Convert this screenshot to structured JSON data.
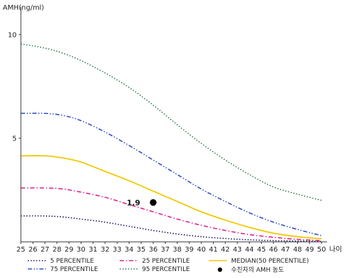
{
  "chart_data": {
    "type": "line",
    "ylabel": "AMH(ng/ml)",
    "xlabel": "나이",
    "xlim": [
      25,
      50
    ],
    "ylim": [
      0,
      11
    ],
    "x_ticks": [
      25,
      26,
      27,
      28,
      29,
      30,
      31,
      32,
      33,
      34,
      35,
      36,
      37,
      38,
      39,
      40,
      41,
      42,
      43,
      44,
      45,
      46,
      47,
      48,
      49,
      50
    ],
    "y_ticks": [
      5,
      10
    ],
    "grid": false,
    "legend_position": "bottom",
    "x": [
      25,
      27,
      28.5,
      30,
      32,
      34,
      36,
      38,
      40,
      42,
      44,
      46,
      48,
      50
    ],
    "series": [
      {
        "name": "5 PERCENTILE",
        "color": "#101060",
        "dash": "dotted",
        "values": [
          1.25,
          1.25,
          1.2,
          1.1,
          0.95,
          0.75,
          0.55,
          0.38,
          0.25,
          0.16,
          0.1,
          0.06,
          0.04,
          0.02
        ]
      },
      {
        "name": "25 PERCENTILE",
        "color": "#e0208a",
        "dash": "dashdot",
        "values": [
          2.6,
          2.6,
          2.55,
          2.4,
          2.15,
          1.8,
          1.45,
          1.1,
          0.8,
          0.55,
          0.35,
          0.22,
          0.12,
          0.06
        ]
      },
      {
        "name": "MEDIAN(50 PERCENTILE)",
        "color": "#f2c800",
        "dash": "solid",
        "values": [
          4.15,
          4.15,
          4.05,
          3.85,
          3.4,
          2.95,
          2.45,
          1.95,
          1.45,
          1.05,
          0.7,
          0.42,
          0.25,
          0.15
        ]
      },
      {
        "name": "75 PERCENTILE",
        "color": "#3050c0",
        "dash": "dashdotdot",
        "values": [
          6.2,
          6.2,
          6.1,
          5.85,
          5.3,
          4.65,
          3.95,
          3.25,
          2.55,
          1.95,
          1.4,
          0.95,
          0.6,
          0.3
        ]
      },
      {
        "name": "95 PERCENTILE",
        "color": "#2a7a4a",
        "dash": "dotted",
        "values": [
          9.55,
          9.35,
          9.1,
          8.75,
          8.15,
          7.45,
          6.6,
          5.65,
          4.75,
          3.95,
          3.25,
          2.65,
          2.3,
          2.0
        ]
      }
    ],
    "marker": {
      "name": "수진자의 AMH 농도",
      "x": 36,
      "y": 1.9,
      "label": "1.9",
      "color": "#000000"
    }
  }
}
